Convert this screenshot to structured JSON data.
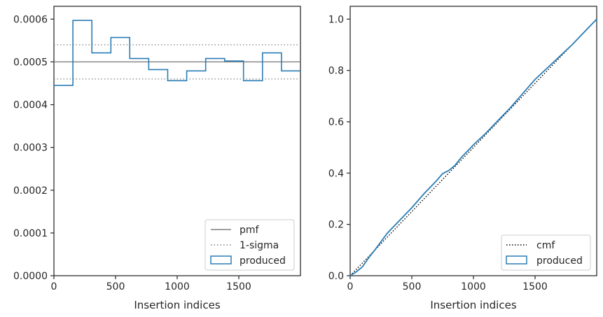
{
  "chart_data": [
    {
      "type": "histogram-step",
      "xlabel": "Insertion indices",
      "ylabel": "",
      "xlim": [
        0,
        2000
      ],
      "ylim": [
        0,
        0.00063
      ],
      "xticks": [
        0,
        500,
        1000,
        1500
      ],
      "xtick_labels": [
        "0",
        "500",
        "1000",
        "1500"
      ],
      "yticks": [
        0,
        0.0001,
        0.0002,
        0.0003,
        0.0004,
        0.0005,
        0.0006
      ],
      "ytick_labels": [
        "0.0000",
        "0.0001",
        "0.0002",
        "0.0003",
        "0.0004",
        "0.0005",
        "0.0006"
      ],
      "grid": false,
      "legend_position": "lower-right",
      "pmf": {
        "name": "pmf",
        "value": 0.0005,
        "color": "#808080"
      },
      "sigma": {
        "name": "1-sigma",
        "values": [
          0.00046,
          0.00054
        ],
        "color": "#808080"
      },
      "produced": {
        "name": "produced",
        "color": "#2a7db5",
        "bin_edges": [
          0,
          154,
          308,
          462,
          615,
          769,
          923,
          1077,
          1231,
          1385,
          1538,
          1692,
          1846,
          2000
        ],
        "values": [
          0.000445,
          0.000597,
          0.000521,
          0.000557,
          0.000508,
          0.000482,
          0.000456,
          0.000479,
          0.000508,
          0.000502,
          0.000456,
          0.000521,
          0.000479
        ]
      }
    },
    {
      "type": "line",
      "xlabel": "Insertion indices",
      "ylabel": "",
      "xlim": [
        0,
        2000
      ],
      "ylim": [
        0,
        1.05
      ],
      "xticks": [
        0,
        500,
        1000,
        1500
      ],
      "xtick_labels": [
        "0",
        "500",
        "1000",
        "1500"
      ],
      "yticks": [
        0.0,
        0.2,
        0.4,
        0.6,
        0.8,
        1.0
      ],
      "ytick_labels": [
        "0.0",
        "0.2",
        "0.4",
        "0.6",
        "0.8",
        "1.0"
      ],
      "grid": false,
      "legend_position": "lower-right",
      "cmf": {
        "name": "cmf",
        "x": [
          0,
          2000
        ],
        "y": [
          0,
          1.0
        ],
        "color": "#000000"
      },
      "produced": {
        "name": "produced",
        "color": "#2a7db5",
        "x": [
          0,
          50,
          100,
          150,
          200,
          300,
          400,
          500,
          600,
          700,
          750,
          800,
          850,
          900,
          1000,
          1100,
          1200,
          1300,
          1400,
          1500,
          1600,
          1700,
          1800,
          1900,
          2000
        ],
        "y": [
          0,
          0.015,
          0.035,
          0.07,
          0.1,
          0.165,
          0.215,
          0.265,
          0.32,
          0.37,
          0.398,
          0.41,
          0.43,
          0.46,
          0.51,
          0.555,
          0.605,
          0.655,
          0.71,
          0.765,
          0.81,
          0.855,
          0.9,
          0.95,
          1.0
        ]
      }
    }
  ]
}
